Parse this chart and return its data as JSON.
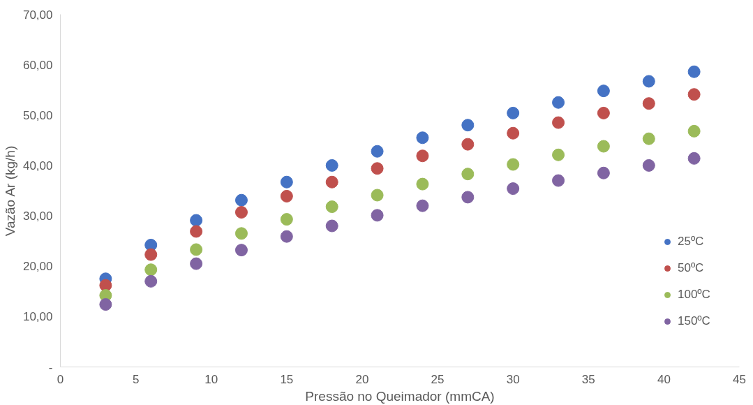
{
  "chart_data": {
    "type": "scatter",
    "xlabel": "Pressão no Queimador (mmCA)",
    "ylabel": "Vazão Ar (kg/h)",
    "x": [
      3,
      6,
      9,
      12,
      15,
      18,
      21,
      24,
      27,
      30,
      33,
      36,
      39,
      42
    ],
    "series": [
      {
        "name": "25ºC",
        "color": "#4472c4",
        "values": [
          17.5,
          24.2,
          29.1,
          33.1,
          36.7,
          40.0,
          42.8,
          45.5,
          48.0,
          50.4,
          52.5,
          54.8,
          56.7,
          58.6
        ]
      },
      {
        "name": "50ºC",
        "color": "#c0504d",
        "values": [
          16.2,
          22.3,
          26.9,
          30.7,
          33.9,
          36.7,
          39.4,
          41.9,
          44.2,
          46.4,
          48.5,
          50.4,
          52.3,
          54.1
        ]
      },
      {
        "name": "100ºC",
        "color": "#9bbb59",
        "values": [
          14.2,
          19.3,
          23.3,
          26.5,
          29.3,
          31.8,
          34.1,
          36.3,
          38.3,
          40.2,
          42.1,
          43.8,
          45.3,
          46.8
        ]
      },
      {
        "name": "150ºC",
        "color": "#8064a2",
        "values": [
          12.4,
          17.0,
          20.5,
          23.2,
          25.9,
          28.0,
          30.1,
          32.0,
          33.7,
          35.4,
          37.0,
          38.5,
          40.0,
          41.4
        ]
      }
    ],
    "xlim": [
      0,
      45
    ],
    "xticks": [
      0,
      5,
      10,
      15,
      20,
      25,
      30,
      35,
      40,
      45
    ],
    "ylim": [
      0,
      70
    ],
    "yticks": [
      {
        "value": 0,
        "label": "-"
      },
      {
        "value": 10,
        "label": "10,00"
      },
      {
        "value": 20,
        "label": "20,00"
      },
      {
        "value": 30,
        "label": "30,00"
      },
      {
        "value": 40,
        "label": "40,00"
      },
      {
        "value": 50,
        "label": "50,00"
      },
      {
        "value": 60,
        "label": "60,00"
      },
      {
        "value": 70,
        "label": "70,00"
      }
    ],
    "grid": false,
    "legend": "right",
    "marker": "circle"
  }
}
